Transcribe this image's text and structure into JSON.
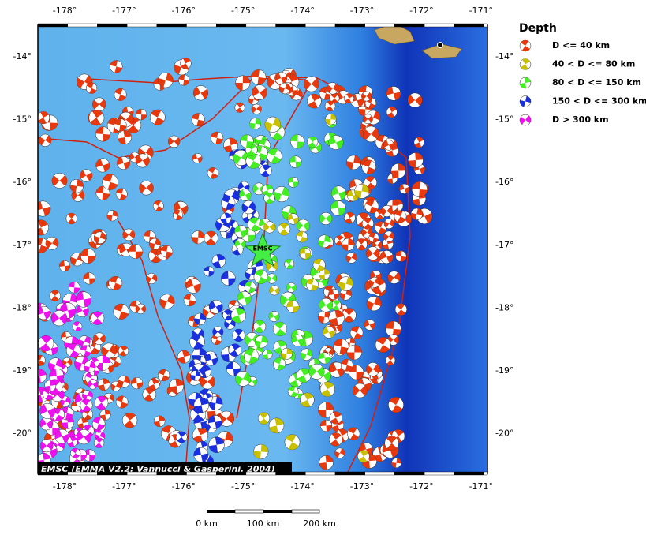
{
  "map": {
    "lon_labels": [
      "-178°",
      "-177°",
      "-176°",
      "-175°",
      "-174°",
      "-173°",
      "-172°",
      "-171°"
    ],
    "lat_labels": [
      "-14°",
      "-15°",
      "-16°",
      "-17°",
      "-18°",
      "-19°",
      "-20°"
    ],
    "epicenter_label": "EMSC",
    "credit": "EMSC (EMMA V2.2; Vannucci & Gasperini, 2004)",
    "scale_labels": [
      "0 km",
      "100 km",
      "200 km"
    ]
  },
  "legend": {
    "title": "Depth",
    "items": [
      {
        "label": "D <= 40 km",
        "color": "#e8380d"
      },
      {
        "label": "40 < D <= 80 km",
        "color": "#c8c000"
      },
      {
        "label": "80 < D <= 150 km",
        "color": "#44ee22"
      },
      {
        "label": "150 < D <= 300 km",
        "color": "#1a2fe0"
      },
      {
        "label": "D > 300 km",
        "color": "#ee10ee"
      }
    ]
  }
}
